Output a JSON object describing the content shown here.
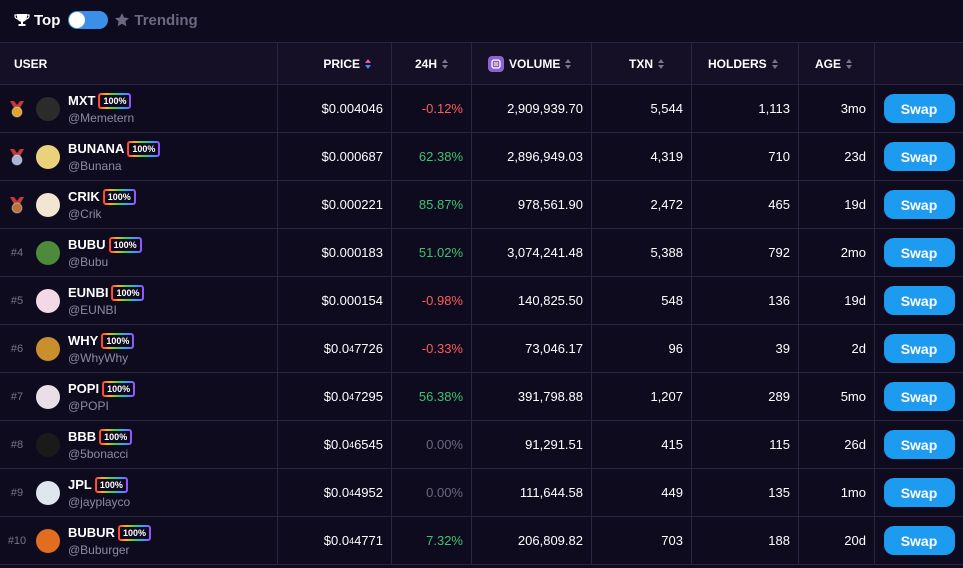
{
  "tabs": {
    "top": "Top",
    "trending": "Trending"
  },
  "columns": {
    "user": "USER",
    "price": "PRICE",
    "change": "24H",
    "volume": "VOLUME",
    "txn": "TXN",
    "holders": "HOLDERS",
    "age": "AGE"
  },
  "rows": [
    {
      "rank": "",
      "medal": "gold",
      "name": "MXT",
      "badge": "100%",
      "handle": "@Memetern",
      "price": "$0.004046",
      "change": "-0.12%",
      "trend": "neg",
      "volume": "2,909,939.70",
      "txn": "5,544",
      "holders": "1,113",
      "age": "3mo",
      "swap": "Swap"
    },
    {
      "rank": "",
      "medal": "silver",
      "name": "BUNANA",
      "badge": "100%",
      "handle": "@Bunana",
      "price": "$0.000687",
      "change": "62.38%",
      "trend": "pos",
      "volume": "2,896,949.03",
      "txn": "4,319",
      "holders": "710",
      "age": "23d",
      "swap": "Swap"
    },
    {
      "rank": "",
      "medal": "bronze",
      "name": "CRIK",
      "badge": "100%",
      "handle": "@Crik",
      "price": "$0.000221",
      "change": "85.87%",
      "trend": "pos",
      "volume": "978,561.90",
      "txn": "2,472",
      "holders": "465",
      "age": "19d",
      "swap": "Swap"
    },
    {
      "rank": "#4",
      "medal": "",
      "name": "BUBU",
      "badge": "100%",
      "handle": "@Bubu",
      "price": "$0.000183",
      "change": "51.02%",
      "trend": "pos",
      "volume": "3,074,241.48",
      "txn": "5,388",
      "holders": "792",
      "age": "2mo",
      "swap": "Swap"
    },
    {
      "rank": "#5",
      "medal": "",
      "name": "EUNBI",
      "badge": "100%",
      "handle": "@EUNBI",
      "price": "$0.000154",
      "change": "-0.98%",
      "trend": "neg",
      "volume": "140,825.50",
      "txn": "548",
      "holders": "136",
      "age": "19d",
      "swap": "Swap"
    },
    {
      "rank": "#6",
      "medal": "",
      "name": "WHY",
      "badge": "100%",
      "handle": "@WhyWhy",
      "price_prefix": "$0.0",
      "price_sub": "4",
      "price_rest": "7726",
      "change": "-0.33%",
      "trend": "neg",
      "volume": "73,046.17",
      "txn": "96",
      "holders": "39",
      "age": "2d",
      "swap": "Swap"
    },
    {
      "rank": "#7",
      "medal": "",
      "name": "POPI",
      "badge": "100%",
      "handle": "@POPI",
      "price_prefix": "$0.0",
      "price_sub": "4",
      "price_rest": "7295",
      "change": "56.38%",
      "trend": "pos",
      "volume": "391,798.88",
      "txn": "1,207",
      "holders": "289",
      "age": "5mo",
      "swap": "Swap"
    },
    {
      "rank": "#8",
      "medal": "",
      "name": "BBB",
      "badge": "100%",
      "handle": "@5bonacci",
      "price_prefix": "$0.0",
      "price_sub": "4",
      "price_rest": "6545",
      "change": "0.00%",
      "trend": "zero",
      "volume": "91,291.51",
      "txn": "415",
      "holders": "115",
      "age": "26d",
      "swap": "Swap"
    },
    {
      "rank": "#9",
      "medal": "",
      "name": "JPL",
      "badge": "100%",
      "handle": "@jayplayco",
      "price_prefix": "$0.0",
      "price_sub": "4",
      "price_rest": "4952",
      "change": "0.00%",
      "trend": "zero",
      "volume": "111,644.58",
      "txn": "449",
      "holders": "135",
      "age": "1mo",
      "swap": "Swap"
    },
    {
      "rank": "#10",
      "medal": "",
      "name": "BUBUR",
      "badge": "100%",
      "handle": "@Buburger",
      "price_prefix": "$0.0",
      "price_sub": "4",
      "price_rest": "4771",
      "change": "7.32%",
      "trend": "pos",
      "volume": "206,809.82",
      "txn": "703",
      "holders": "188",
      "age": "20d",
      "swap": "Swap"
    }
  ],
  "colors": {
    "background": "#0f0b1e",
    "positive": "#3ec26f",
    "negative": "#ff5c5c",
    "neutral": "#6b6880",
    "swap_button": "#1d9bf0",
    "toggle": "#3b8fe8",
    "medal_gold": "#e0a42a",
    "medal_silver": "#a9b4d8",
    "medal_bronze": "#b8743a"
  },
  "avatars": [
    "#2b2b2b",
    "#e9d27a",
    "#f1e6d2",
    "#4e8a3b",
    "#f3d9e6",
    "#c98f2c",
    "#e8e0e6",
    "#1a1a1a",
    "#dfe6ee",
    "#e26c1f"
  ],
  "icons": {
    "top_tab": "trophy-icon",
    "trending_tab": "star-icon",
    "volume": "volume-icon"
  }
}
